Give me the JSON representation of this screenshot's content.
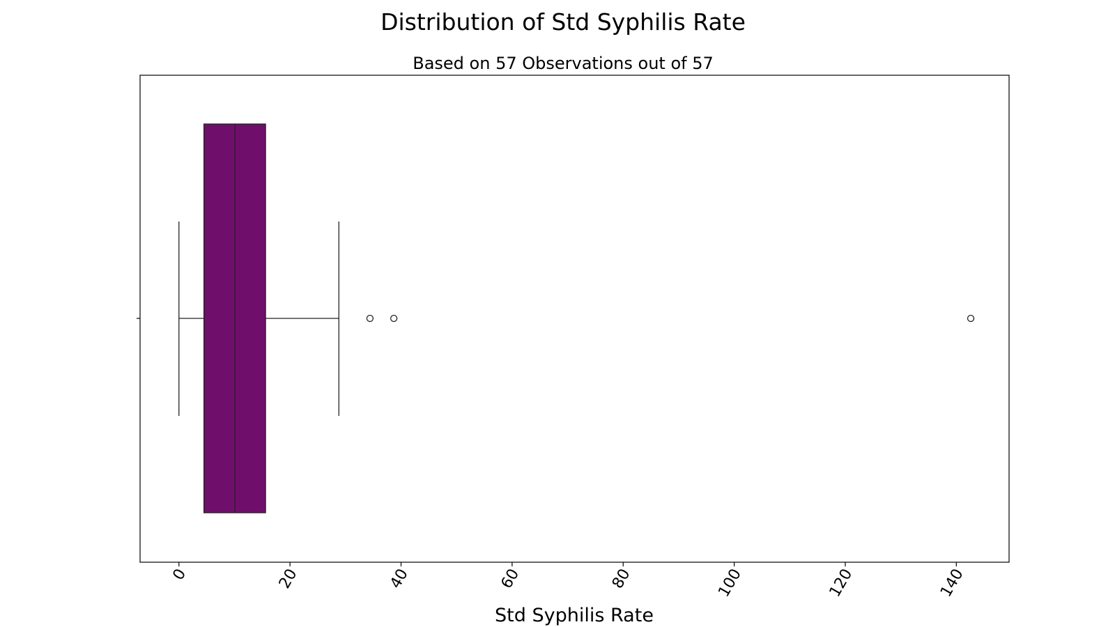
{
  "chart_data": {
    "type": "boxplot",
    "orientation": "horizontal",
    "title": "Distribution of Std Syphilis Rate",
    "subtitle": "Based on 57 Observations out of 57",
    "xlabel": "Std Syphilis Rate",
    "ylabel": "",
    "xlim": [
      -7,
      149.5
    ],
    "xticks": [
      0,
      20,
      40,
      60,
      80,
      100,
      120,
      140
    ],
    "xtick_labels": [
      "0",
      "20",
      "40",
      "60",
      "80",
      "100",
      "120",
      "140"
    ],
    "tick_rotation_deg": -60,
    "grid": false,
    "legend": "none",
    "box": {
      "whisker_low": 0.0,
      "q1": 4.5,
      "median": 10.1,
      "q3": 15.6,
      "whisker_high": 28.8
    },
    "outliers": [
      34.4,
      38.7,
      142.6
    ],
    "colors": {
      "box_fill": "#700f6b",
      "line": "#222222",
      "frame": "#000000"
    }
  }
}
